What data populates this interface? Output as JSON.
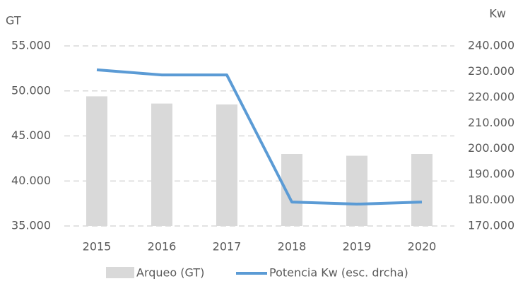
{
  "chart_data": {
    "type": "bar",
    "y_label": "GT",
    "y2_label": "Kw",
    "categories": [
      "2015",
      "2016",
      "2017",
      "2018",
      "2019",
      "2020"
    ],
    "series": [
      {
        "name": "Arqueo (GT)",
        "type": "bar",
        "color": "#d9d9d9",
        "values": [
          49400,
          48600,
          48500,
          43000,
          42800,
          43000
        ]
      },
      {
        "name": "Potencia Kw (esc. drcha)",
        "type": "line",
        "axis": "y2",
        "color": "#5b9bd5",
        "values": [
          230700,
          228700,
          228700,
          179300,
          178500,
          179300
        ]
      }
    ],
    "ylim": [
      35000,
      55000
    ],
    "yticks": [
      {
        "value": 35000,
        "label": "35.000"
      },
      {
        "value": 40000,
        "label": "40.000"
      },
      {
        "value": 45000,
        "label": "45.000"
      },
      {
        "value": 50000,
        "label": "50.000"
      },
      {
        "value": 55000,
        "label": "55.000"
      }
    ],
    "y2lim": [
      170000,
      240000
    ],
    "y2ticks": [
      {
        "value": 170000,
        "label": "170.000"
      },
      {
        "value": 180000,
        "label": "180.000"
      },
      {
        "value": 190000,
        "label": "190.000"
      },
      {
        "value": 200000,
        "label": "200.000"
      },
      {
        "value": 210000,
        "label": "210.000"
      },
      {
        "value": 220000,
        "label": "220.000"
      },
      {
        "value": 230000,
        "label": "230.000"
      },
      {
        "value": 240000,
        "label": "240.000"
      }
    ],
    "grid": true,
    "legend": "bottom"
  }
}
